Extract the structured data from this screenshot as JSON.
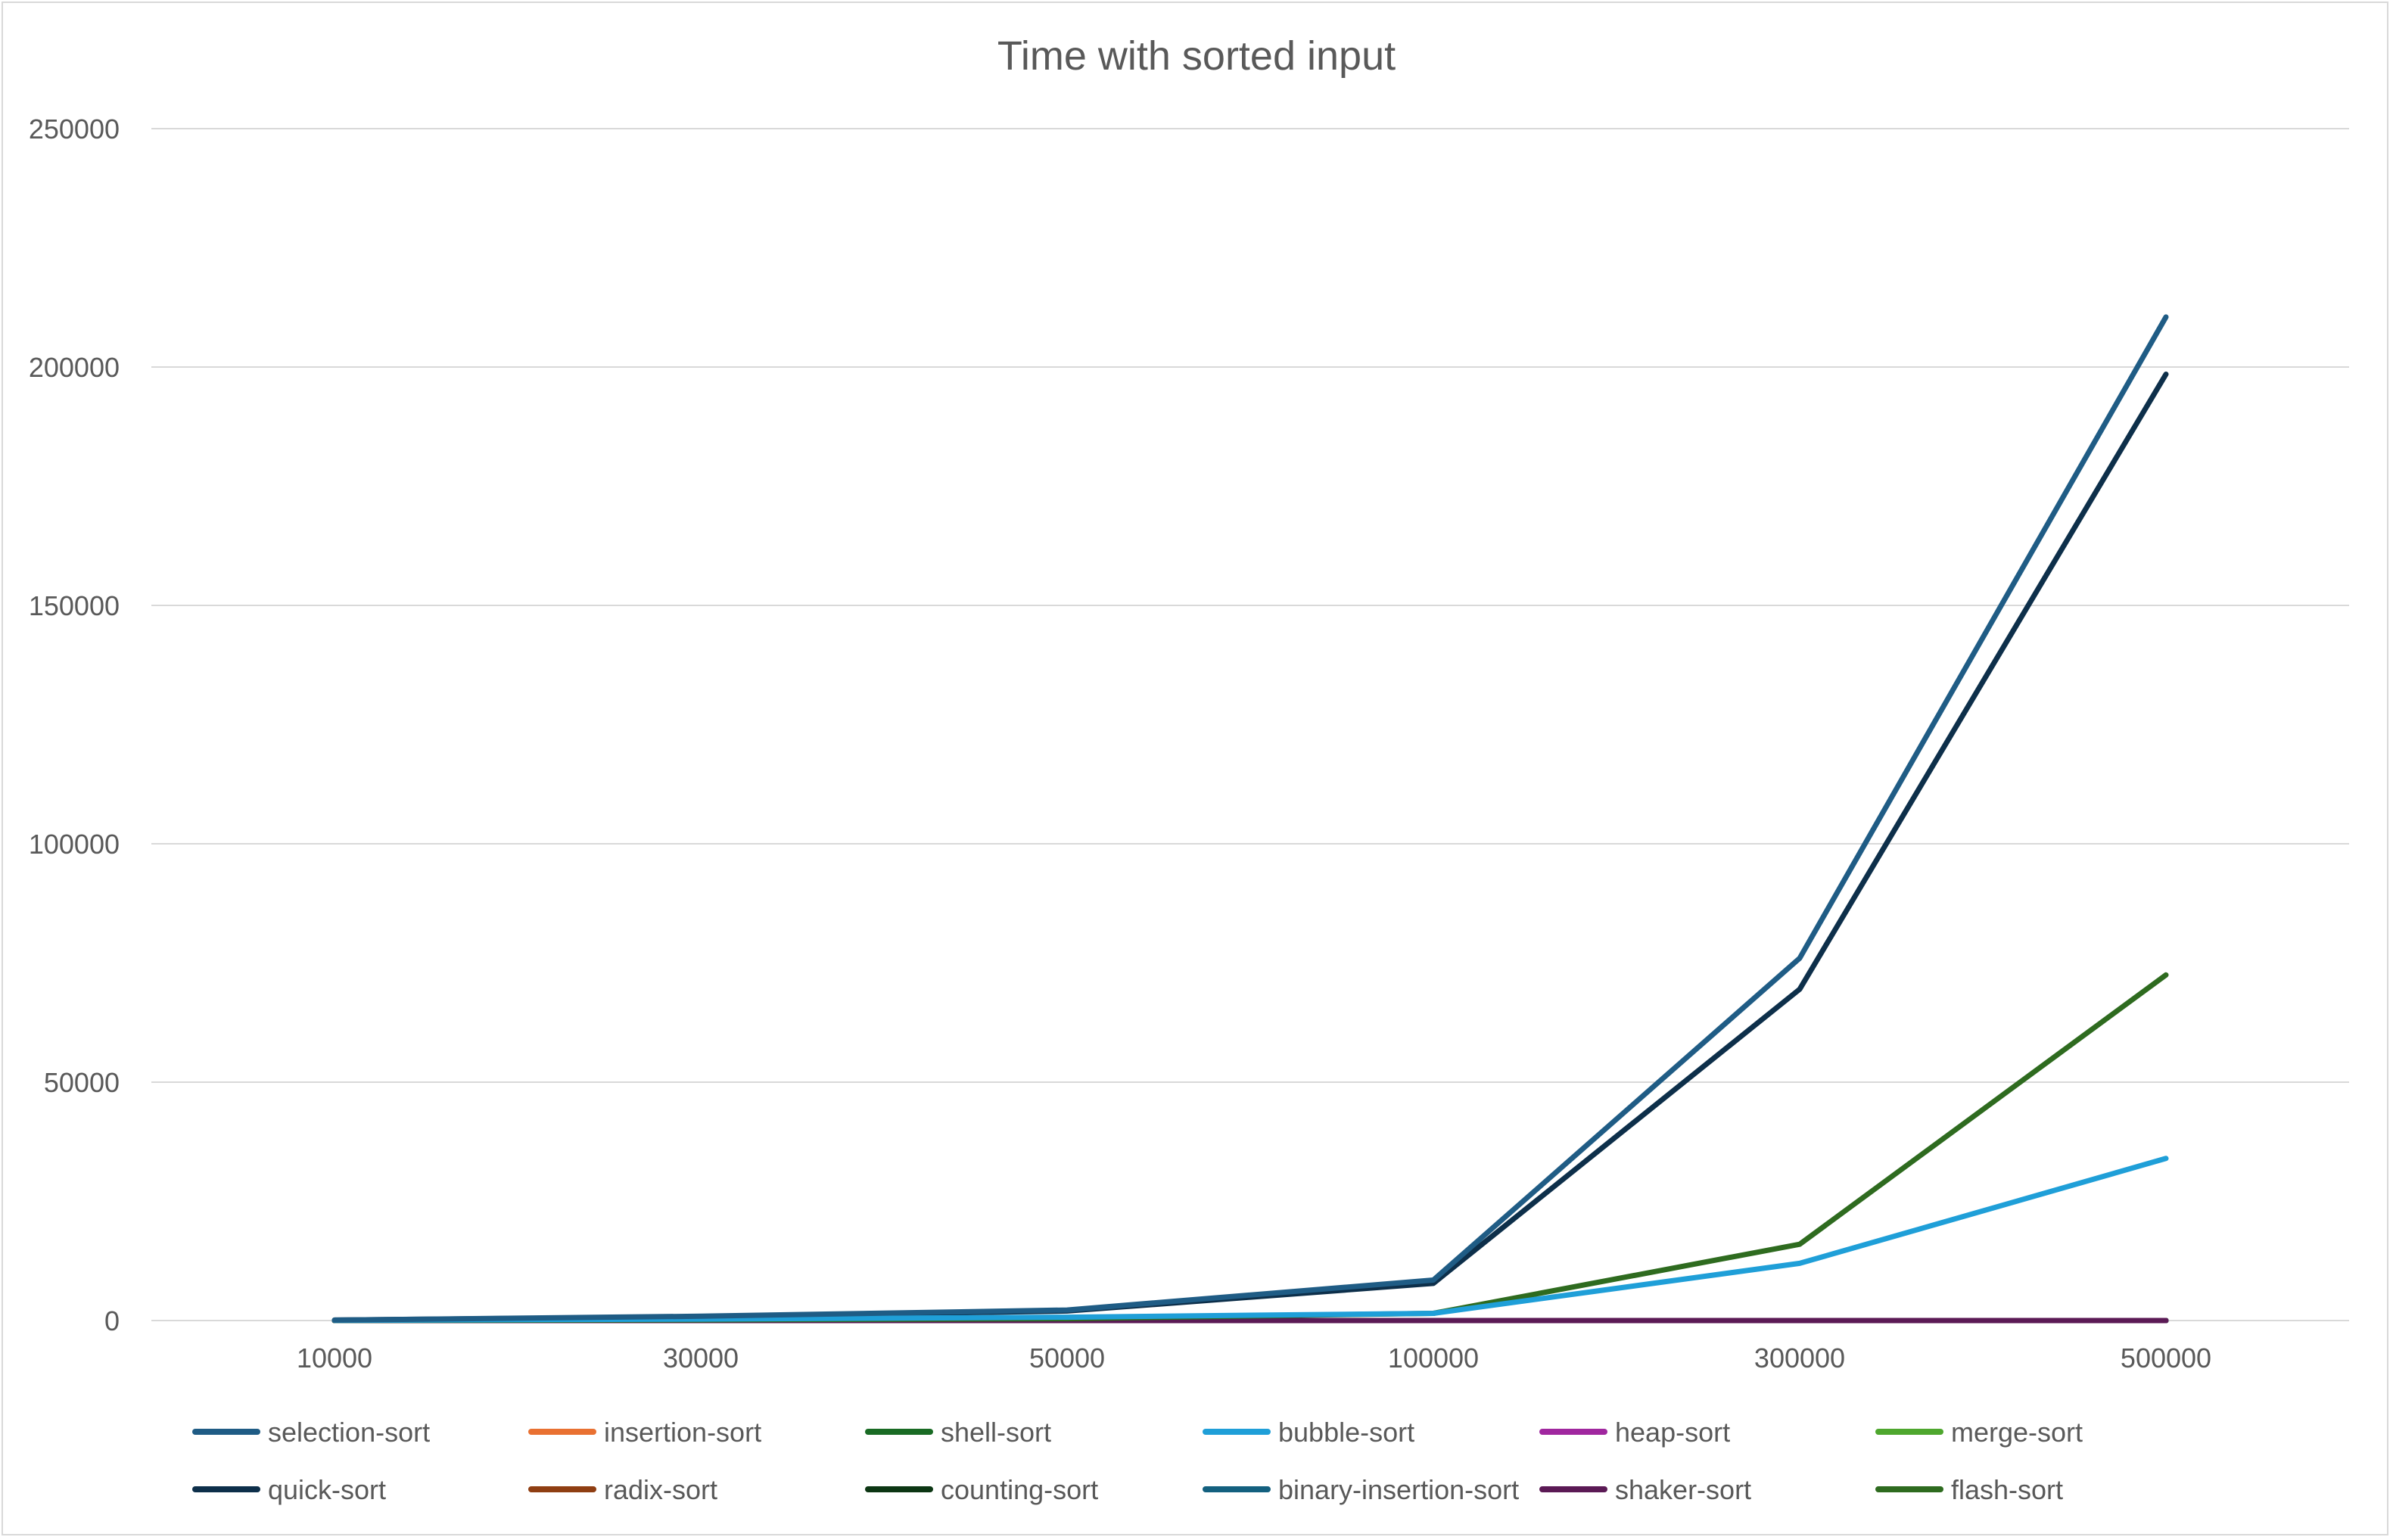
{
  "chart_data": {
    "type": "line",
    "title": "Time with sorted input",
    "xlabel": "",
    "ylabel": "",
    "categories": [
      "10000",
      "30000",
      "50000",
      "100000",
      "300000",
      "500000"
    ],
    "ylim": [
      0,
      250000
    ],
    "yticks": [
      "0",
      "50000",
      "100000",
      "150000",
      "200000",
      "250000"
    ],
    "grid": true,
    "legend_position": "bottom",
    "series": [
      {
        "name": "selection-sort",
        "color": "#1f5c85",
        "values": [
          100,
          900,
          2200,
          8500,
          76000,
          210500
        ]
      },
      {
        "name": "insertion-sort",
        "color": "#e97132",
        "values": [
          0,
          0,
          0,
          0,
          0,
          0
        ]
      },
      {
        "name": "shell-sort",
        "color": "#196b24",
        "values": [
          0,
          0,
          0,
          0,
          0,
          0
        ]
      },
      {
        "name": "bubble-sort",
        "color": "#1f9fd8",
        "values": [
          50,
          300,
          700,
          1500,
          12000,
          34000
        ]
      },
      {
        "name": "heap-sort",
        "color": "#a0279f",
        "values": [
          0,
          0,
          0,
          0,
          0,
          0
        ]
      },
      {
        "name": "merge-sort",
        "color": "#4ea72e",
        "values": [
          0,
          0,
          0,
          0,
          0,
          0
        ]
      },
      {
        "name": "quick-sort",
        "color": "#0d2f4a",
        "values": [
          90,
          800,
          2000,
          7800,
          69500,
          198500
        ]
      },
      {
        "name": "radix-sort",
        "color": "#8f3e12",
        "values": [
          0,
          0,
          0,
          0,
          0,
          0
        ]
      },
      {
        "name": "counting-sort",
        "color": "#0c3613",
        "values": [
          0,
          0,
          0,
          0,
          0,
          0
        ]
      },
      {
        "name": "binary-insertion-sort",
        "color": "#13607f",
        "values": [
          0,
          0,
          0,
          0,
          0,
          0
        ]
      },
      {
        "name": "shaker-sort",
        "color": "#5b1a55",
        "values": [
          0,
          0,
          0,
          0,
          0,
          0
        ]
      },
      {
        "name": "flash-sort",
        "color": "#2e6b1f",
        "values": [
          20,
          150,
          400,
          1500,
          16000,
          72500
        ]
      }
    ]
  }
}
